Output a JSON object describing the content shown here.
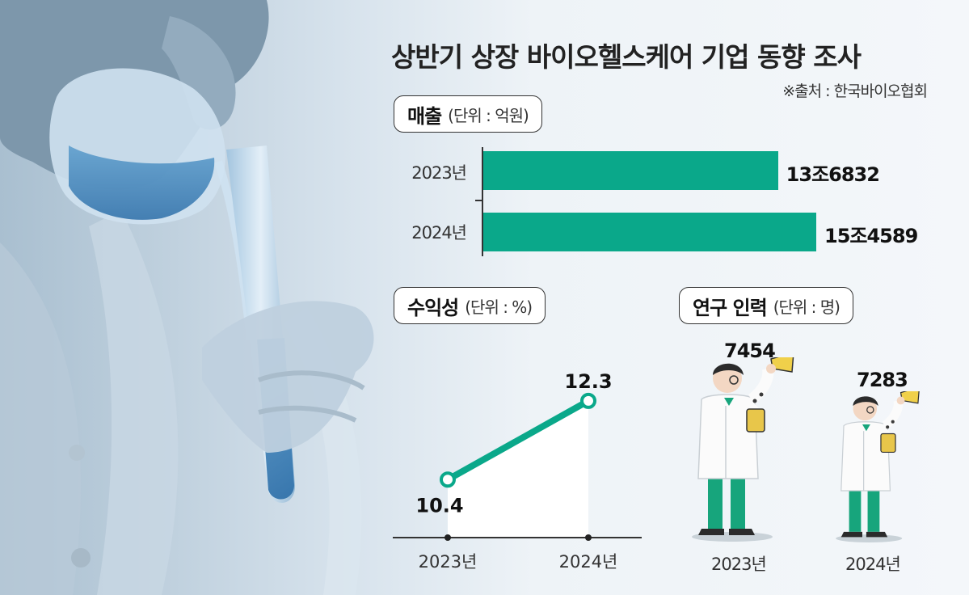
{
  "header": {
    "title": "상반기 상장 바이오헬스케어 기업 동향 조사",
    "source": "※출처 : 한국바이오협회"
  },
  "colors": {
    "accent": "#0aa88a",
    "background": "#eef3f7"
  },
  "chart_data": [
    {
      "type": "bar",
      "orientation": "horizontal",
      "label": "매출",
      "unit_label": "(단위 : 억원)",
      "categories": [
        "2023년",
        "2024년"
      ],
      "values": [
        136832,
        154589
      ],
      "value_labels": [
        "13조6832",
        "15조4589"
      ]
    },
    {
      "type": "line",
      "label": "수익성",
      "unit_label": "(단위 : %)",
      "categories": [
        "2023년",
        "2024년"
      ],
      "values": [
        10.4,
        12.3
      ],
      "value_labels": [
        "10.4",
        "12.3"
      ]
    },
    {
      "type": "pictograph",
      "label": "연구 인력",
      "unit_label": "(단위 : 명)",
      "categories": [
        "2023년",
        "2024년"
      ],
      "values": [
        7454,
        7283
      ],
      "value_labels": [
        "7454",
        "7283"
      ]
    }
  ]
}
